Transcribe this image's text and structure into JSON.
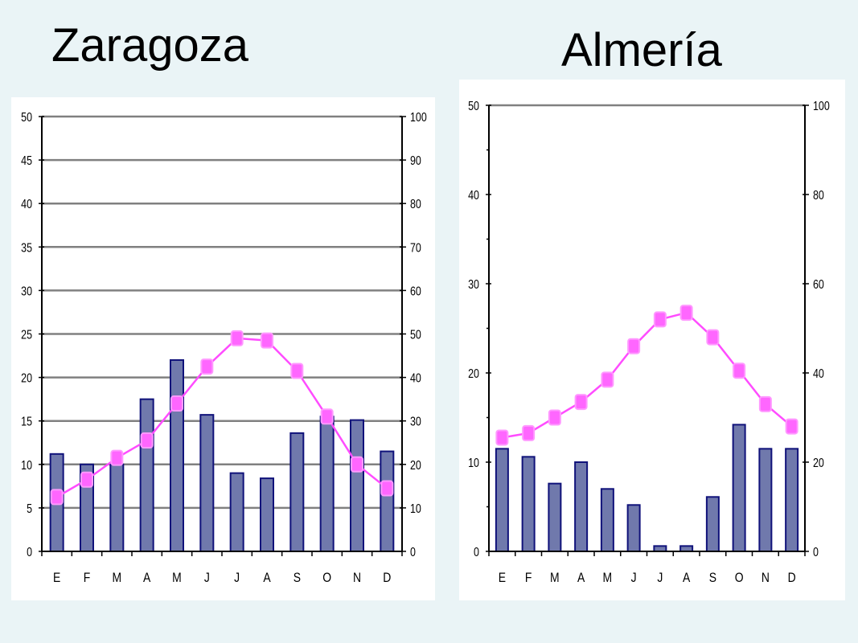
{
  "charts": [
    {
      "title": "Zaragoza",
      "chart_data": {
        "type": "bar+line",
        "title": "Zaragoza",
        "categories": [
          "E",
          "F",
          "M",
          "A",
          "M",
          "J",
          "J",
          "A",
          "S",
          "O",
          "N",
          "D"
        ],
        "series": [
          {
            "kind": "bar",
            "axis": "left",
            "values": [
              11.2,
              10,
              10,
              17.5,
              22,
              15.7,
              9,
              8.4,
              13.6,
              15.5,
              15.1,
              11.5
            ]
          },
          {
            "kind": "line",
            "axis": "right",
            "values": [
              12.5,
              16.5,
              21.5,
              25.5,
              34,
              42.5,
              49,
              48.5,
              41.5,
              31,
              20,
              14.5
            ]
          }
        ],
        "ylim_left": [
          0,
          50
        ],
        "ylim_right": [
          0,
          100
        ],
        "yticks_left": [
          0,
          5,
          10,
          15,
          20,
          25,
          30,
          35,
          40,
          45,
          50
        ],
        "yticks_right": [
          0,
          10,
          20,
          30,
          40,
          50,
          60,
          70,
          80,
          90,
          100
        ],
        "grid": true
      }
    },
    {
      "title": "Almería",
      "chart_data": {
        "type": "bar+line",
        "title": "Almería",
        "categories": [
          "E",
          "F",
          "M",
          "A",
          "M",
          "J",
          "J",
          "A",
          "S",
          "O",
          "N",
          "D"
        ],
        "series": [
          {
            "kind": "bar",
            "axis": "left",
            "values": [
              11.5,
              10.6,
              7.6,
              10,
              7,
              5.2,
              0.6,
              0.6,
              6.1,
              14.2,
              11.5,
              11.5
            ]
          },
          {
            "kind": "line",
            "axis": "right",
            "values": [
              25.5,
              26.5,
              30,
              33.5,
              38.5,
              46,
              52,
              53.5,
              48,
              40.5,
              33,
              28
            ]
          }
        ],
        "ylim_left": [
          0,
          50
        ],
        "ylim_right": [
          0,
          100
        ],
        "yticks_left": [
          0,
          10,
          20,
          30,
          40,
          50
        ],
        "yticks_right": [
          0,
          20,
          40,
          60,
          80,
          100
        ],
        "grid": false
      }
    }
  ],
  "colors": {
    "bar_fill": "#7079ac",
    "bar_stroke": "#10127a",
    "line": "#ff4cff",
    "marker": "#ff66ff",
    "gridline": "#808080"
  }
}
